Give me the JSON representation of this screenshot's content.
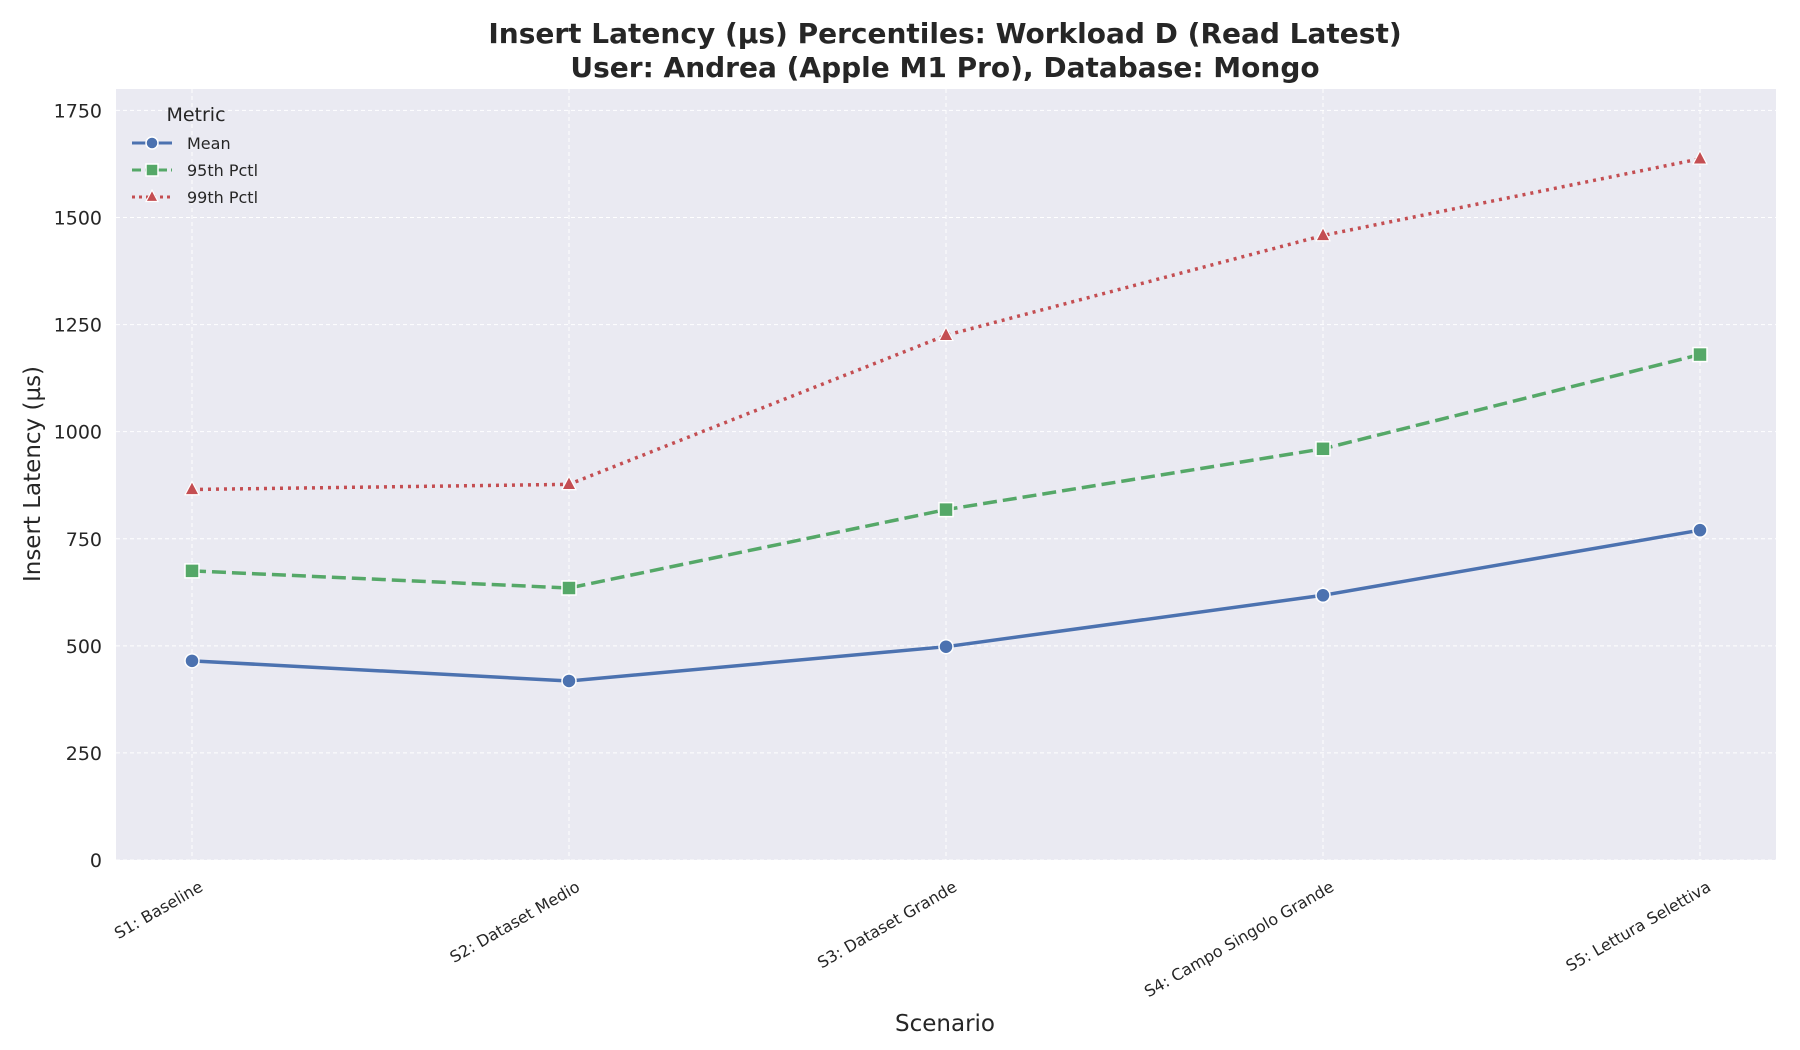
{
  "chart_data": {
    "type": "line",
    "title": "Insert Latency (µs) Percentiles: Workload D (Read Latest)",
    "subtitle": "User: Andrea (Apple M1 Pro), Database: Mongo",
    "xlabel": "Scenario",
    "ylabel": "Insert Latency (µs)",
    "ylim": [
      0,
      1800
    ],
    "yticks": [
      0,
      250,
      500,
      750,
      1000,
      1250,
      1500,
      1750
    ],
    "grid": true,
    "background": "#eaeaf2",
    "categories": [
      "S1: Baseline",
      "S2: Dataset Medio",
      "S3: Dataset Grande",
      "S4: Campo Singolo Grande",
      "S5: Lettura Selettiva"
    ],
    "legend": {
      "title": "Metric",
      "placement": "top-left"
    },
    "series": [
      {
        "name": "Mean",
        "values": [
          465,
          418,
          498,
          618,
          770
        ],
        "color": "#4c72b0",
        "line_style": "solid",
        "marker": "circle"
      },
      {
        "name": "95th Pctl",
        "values": [
          675,
          635,
          818,
          960,
          1180
        ],
        "color": "#55a868",
        "line_style": "dashed",
        "marker": "square"
      },
      {
        "name": "99th Pctl",
        "values": [
          865,
          877,
          1225,
          1458,
          1637
        ],
        "color": "#c44e52",
        "line_style": "dotted",
        "marker": "triangle"
      }
    ]
  }
}
